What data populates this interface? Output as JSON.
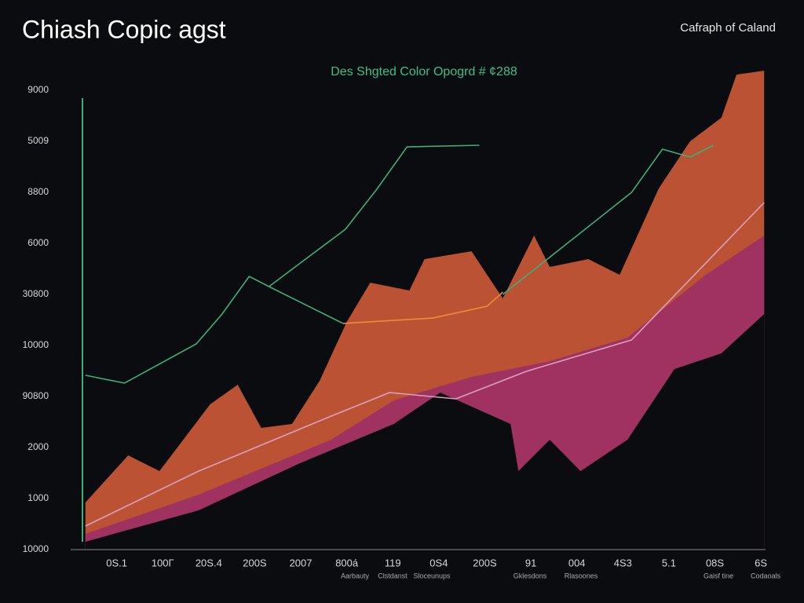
{
  "chart_data": {
    "type": "line",
    "title": "Chiash Copic agst",
    "subtitle": "Des Shgted Color Opogrd # ¢288",
    "corner_note": "Cafraph of Caland",
    "xlim": [
      -1,
      14.1
    ],
    "ylim": [
      0,
      9000
    ],
    "xticks": [
      {
        "value": 0,
        "label": "0S.1"
      },
      {
        "value": 1,
        "label": "100Г"
      },
      {
        "value": 2,
        "label": "20S.4"
      },
      {
        "value": 3,
        "label": "200S"
      },
      {
        "value": 4,
        "label": "2007"
      },
      {
        "value": 5,
        "label": "800á"
      },
      {
        "value": 6,
        "label": "119"
      },
      {
        "value": 7,
        "label": "0S4"
      },
      {
        "value": 8,
        "label": "200S"
      },
      {
        "value": 9,
        "label": "91"
      },
      {
        "value": 10,
        "label": "004"
      },
      {
        "value": 11,
        "label": "4S3"
      },
      {
        "value": 12,
        "label": "5.1"
      },
      {
        "value": 13,
        "label": "08S"
      },
      {
        "value": 14,
        "label": "6S"
      }
    ],
    "xsublabels": [
      "Aarbauty",
      "Clstdanst",
      "Sloceunups",
      "Gklesdons",
      "Rlasoones",
      "Gaisf tine",
      "Codaoals"
    ],
    "yticks": [
      {
        "value": 0,
        "label": "10000"
      },
      1000,
      2000,
      {
        "value": 3000,
        "label": "90800"
      },
      {
        "value": 4000,
        "label": "10000"
      },
      {
        "value": 5000,
        "label": "30800"
      },
      6000,
      {
        "value": 7000,
        "label": "8800"
      },
      {
        "value": 8000,
        "label": "5009"
      },
      9000
    ],
    "series": [
      {
        "type": "area",
        "color": "#d95f3a",
        "x": [
          -0.68,
          0.25,
          0.59,
          0.93,
          2.03,
          2.63,
          3.14,
          3.81,
          4.41,
          5.0,
          5.51,
          6.36,
          6.69,
          7.71,
          8.39,
          9.07,
          9.41,
          10.25,
          10.93,
          11.78,
          12.46,
          13.14,
          13.47,
          14.07
        ],
        "values": [
          923,
          1846,
          1692,
          1538,
          2846,
          3231,
          2385,
          2462,
          3308,
          4462,
          5231,
          5077,
          5692,
          5846,
          4923,
          6154,
          5538,
          5692,
          5385,
          7077,
          8000,
          8462,
          9308,
          9385
        ]
      },
      {
        "type": "area",
        "color": "#9b2d6a",
        "x": [
          -0.68,
          1.78,
          4.66,
          6.02,
          7.71,
          9.41,
          11.1,
          12.8,
          14.07
        ],
        "values": [
          308,
          1077,
          2154,
          2923,
          3385,
          3692,
          4154,
          5385,
          6154
        ]
      },
      {
        "type": "area",
        "color": "#0b0c10",
        "x": [
          -0.68,
          1.78,
          3.98,
          6.02,
          7.03,
          8.56,
          8.73,
          9.41,
          10.08,
          11.1,
          12.12,
          13.14,
          14.07
        ],
        "values": [
          154,
          769,
          1692,
          2462,
          3077,
          2462,
          1538,
          2154,
          1538,
          2154,
          3538,
          3846,
          4615
        ]
      },
      {
        "type": "line",
        "color": "#3fae7a",
        "x": [
          -0.68,
          0.17,
          1.73,
          2.29,
          2.88,
          3.31,
          4.92,
          null,
          3.31,
          4.97,
          5.64,
          6.31,
          7.88,
          null,
          8.39,
          11.19,
          11.86,
          12.46,
          12.97
        ],
        "values": [
          3415,
          3262,
          4031,
          4615,
          5354,
          5154,
          4431,
          null,
          5154,
          6277,
          7046,
          7892,
          7923,
          null,
          5000,
          7000,
          7846,
          7692,
          7923
        ]
      },
      {
        "type": "line",
        "color": "#f08a3a",
        "x": [
          4.92,
          6.87,
          8.05,
          8.39
        ],
        "values": [
          4431,
          4538,
          4769,
          5046
        ]
      },
      {
        "type": "line",
        "color": "#d9a0c0",
        "x": [
          -0.68,
          1.78,
          4.66,
          5.93,
          7.37,
          8.9,
          11.19,
          14.07
        ],
        "values": [
          461,
          1538,
          2615,
          3077,
          2954,
          3492,
          4108,
          6800
        ]
      }
    ]
  }
}
